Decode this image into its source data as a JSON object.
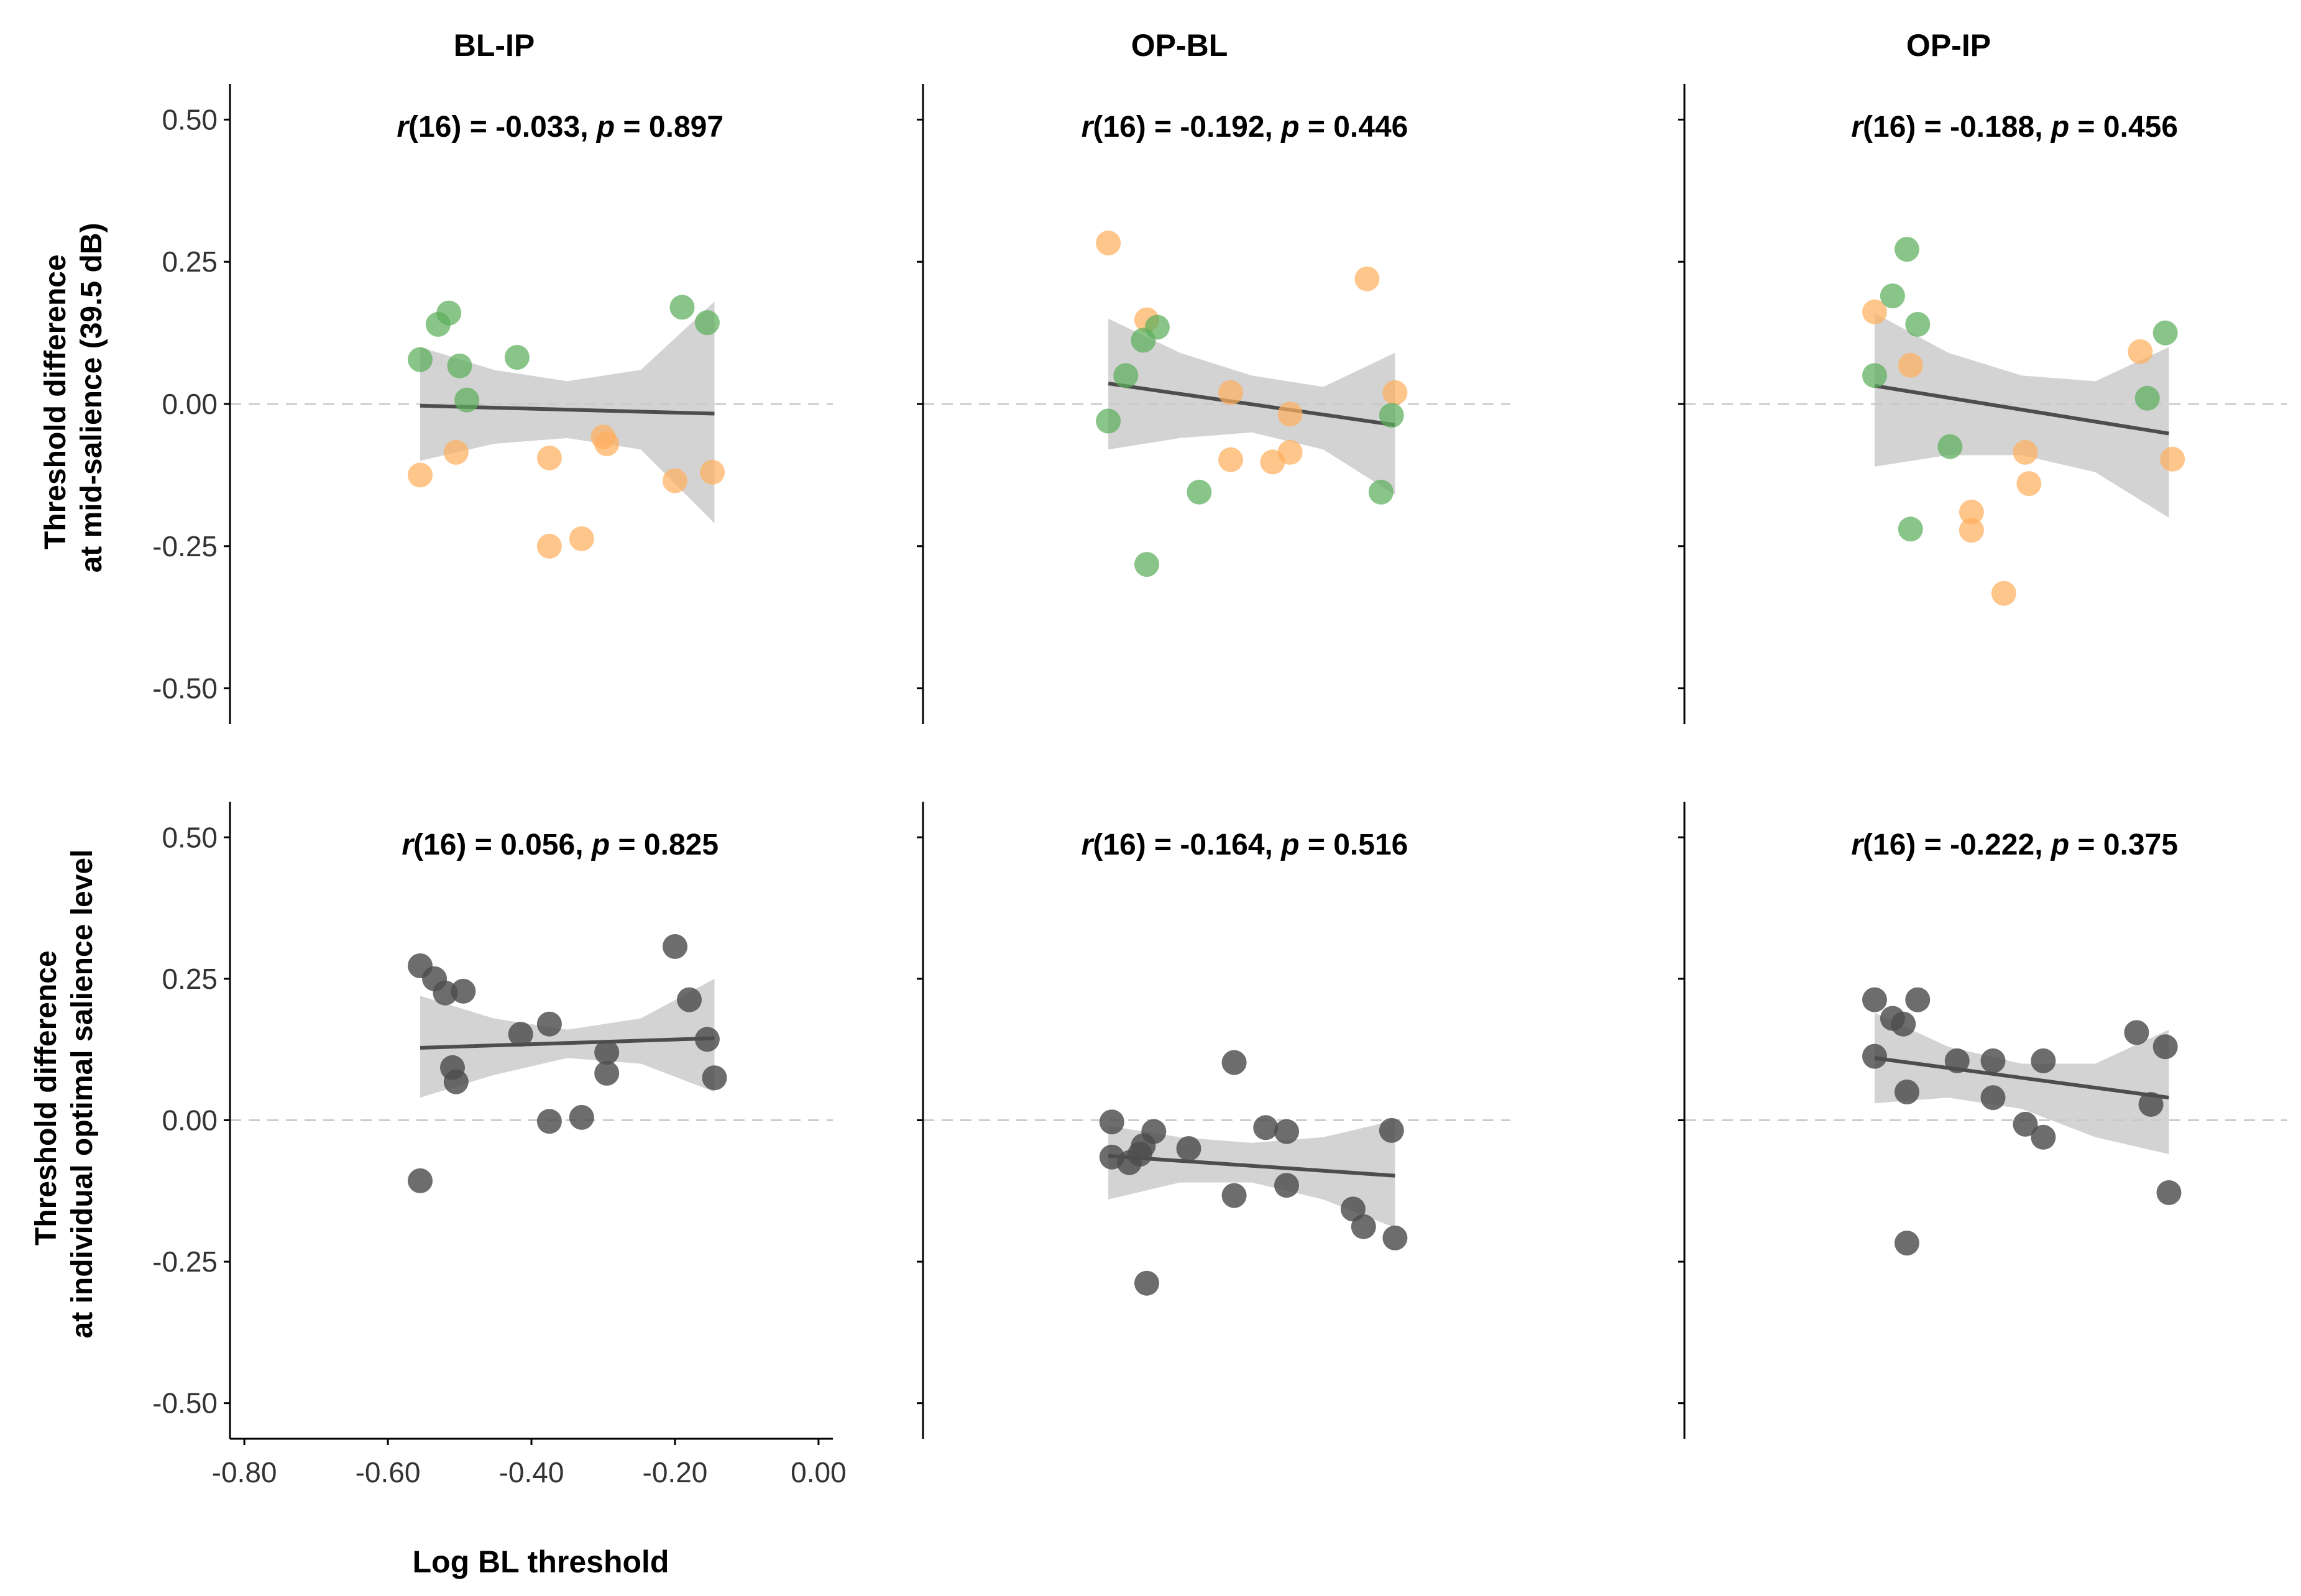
{
  "chart_data": {
    "type": "scatter",
    "xlabel": "Log BL threshold",
    "x_ticks": [
      "-0.80",
      "-0.60",
      "-0.40",
      "-0.20",
      "0.00"
    ],
    "y_ticks": [
      "0.50",
      "0.25",
      "0.00",
      "-0.25",
      "-0.50"
    ],
    "xlim": [
      -0.82,
      0.02
    ],
    "ylim": [
      -0.53,
      0.53
    ],
    "row_ylabels": [
      [
        "Threshold difference",
        "at mid-salience (39.5 dB)"
      ],
      [
        "Threshold difference",
        "at individual optimal salience level"
      ]
    ],
    "column_titles": [
      "BL-IP",
      "OP-BL",
      "OP-IP"
    ],
    "colors": {
      "green": "#5cae5c",
      "orange": "#ffb060",
      "gray": "#4d4d4d",
      "band": "#c8c8c8",
      "line": "#4d4d4d",
      "zero": "#cccccc"
    },
    "panels": [
      {
        "title": "BL-IP",
        "row": 0,
        "col": 0,
        "stat": {
          "r_df": "(16) = -0.033, ",
          "p_val": " = 0.897"
        },
        "fit": {
          "x": [
            -0.555,
            -0.145
          ],
          "y": [
            -0.003,
            -0.017
          ]
        },
        "band": {
          "upper": [
            0.1,
            0.06,
            0.04,
            0.06,
            0.18
          ],
          "lower": [
            -0.1,
            -0.07,
            -0.06,
            -0.08,
            -0.21
          ]
        },
        "points": [
          {
            "x": -0.555,
            "y": 0.078,
            "c": "green"
          },
          {
            "x": -0.53,
            "y": 0.14,
            "c": "green"
          },
          {
            "x": -0.515,
            "y": 0.16,
            "c": "green"
          },
          {
            "x": -0.5,
            "y": 0.067,
            "c": "green"
          },
          {
            "x": -0.49,
            "y": 0.007,
            "c": "green"
          },
          {
            "x": -0.42,
            "y": 0.082,
            "c": "green"
          },
          {
            "x": -0.19,
            "y": 0.17,
            "c": "green"
          },
          {
            "x": -0.155,
            "y": 0.143,
            "c": "green"
          },
          {
            "x": -0.555,
            "y": -0.125,
            "c": "orange"
          },
          {
            "x": -0.505,
            "y": -0.085,
            "c": "orange"
          },
          {
            "x": -0.375,
            "y": -0.095,
            "c": "orange"
          },
          {
            "x": -0.375,
            "y": -0.25,
            "c": "orange"
          },
          {
            "x": -0.33,
            "y": -0.237,
            "c": "orange"
          },
          {
            "x": -0.3,
            "y": -0.058,
            "c": "orange"
          },
          {
            "x": -0.295,
            "y": -0.07,
            "c": "orange"
          },
          {
            "x": -0.2,
            "y": -0.135,
            "c": "orange"
          },
          {
            "x": -0.148,
            "y": -0.12,
            "c": "orange"
          }
        ]
      },
      {
        "title": "OP-BL",
        "row": 0,
        "col": 1,
        "stat": {
          "r_df": "(16) = -0.192, ",
          "p_val": " = 0.446"
        },
        "fit": {
          "x": [
            -0.555,
            -0.145
          ],
          "y": [
            0.036,
            -0.037
          ]
        },
        "band": {
          "upper": [
            0.15,
            0.09,
            0.05,
            0.03,
            0.09
          ],
          "lower": [
            -0.08,
            -0.06,
            -0.05,
            -0.08,
            -0.16
          ]
        },
        "points": [
          {
            "x": -0.555,
            "y": 0.283,
            "c": "orange"
          },
          {
            "x": -0.5,
            "y": 0.148,
            "c": "orange"
          },
          {
            "x": -0.38,
            "y": 0.02,
            "c": "orange"
          },
          {
            "x": -0.38,
            "y": -0.098,
            "c": "orange"
          },
          {
            "x": -0.32,
            "y": -0.102,
            "c": "orange"
          },
          {
            "x": -0.295,
            "y": -0.018,
            "c": "orange"
          },
          {
            "x": -0.295,
            "y": -0.085,
            "c": "orange"
          },
          {
            "x": -0.185,
            "y": 0.22,
            "c": "orange"
          },
          {
            "x": -0.145,
            "y": 0.02,
            "c": "orange"
          },
          {
            "x": -0.555,
            "y": -0.03,
            "c": "green"
          },
          {
            "x": -0.53,
            "y": 0.05,
            "c": "green"
          },
          {
            "x": -0.505,
            "y": 0.112,
            "c": "green"
          },
          {
            "x": -0.485,
            "y": 0.135,
            "c": "green"
          },
          {
            "x": -0.5,
            "y": -0.282,
            "c": "green"
          },
          {
            "x": -0.425,
            "y": -0.155,
            "c": "green"
          },
          {
            "x": -0.165,
            "y": -0.155,
            "c": "green"
          },
          {
            "x": -0.15,
            "y": -0.02,
            "c": "green"
          }
        ]
      },
      {
        "title": "OP-IP",
        "row": 0,
        "col": 2,
        "stat": {
          "r_df": "(16) = -0.188, ",
          "p_val": " = 0.456"
        },
        "fit": {
          "x": [
            -0.555,
            -0.145
          ],
          "y": [
            0.032,
            -0.052
          ]
        },
        "band": {
          "upper": [
            0.16,
            0.09,
            0.05,
            0.04,
            0.1
          ],
          "lower": [
            -0.11,
            -0.09,
            -0.09,
            -0.12,
            -0.2
          ]
        },
        "points": [
          {
            "x": -0.555,
            "y": 0.162,
            "c": "orange"
          },
          {
            "x": -0.505,
            "y": 0.068,
            "c": "orange"
          },
          {
            "x": -0.42,
            "y": -0.19,
            "c": "orange"
          },
          {
            "x": -0.42,
            "y": -0.222,
            "c": "orange"
          },
          {
            "x": -0.375,
            "y": -0.333,
            "c": "orange"
          },
          {
            "x": -0.345,
            "y": -0.085,
            "c": "orange"
          },
          {
            "x": -0.34,
            "y": -0.14,
            "c": "orange"
          },
          {
            "x": -0.185,
            "y": 0.092,
            "c": "orange"
          },
          {
            "x": -0.14,
            "y": -0.097,
            "c": "orange"
          },
          {
            "x": -0.555,
            "y": 0.05,
            "c": "green"
          },
          {
            "x": -0.53,
            "y": 0.19,
            "c": "green"
          },
          {
            "x": -0.51,
            "y": 0.272,
            "c": "green"
          },
          {
            "x": -0.495,
            "y": 0.14,
            "c": "green"
          },
          {
            "x": -0.505,
            "y": -0.22,
            "c": "green"
          },
          {
            "x": -0.45,
            "y": -0.075,
            "c": "green"
          },
          {
            "x": -0.175,
            "y": 0.01,
            "c": "green"
          },
          {
            "x": -0.15,
            "y": 0.125,
            "c": "green"
          }
        ]
      },
      {
        "title": "",
        "row": 1,
        "col": 0,
        "stat": {
          "r_df": "(16) = 0.056, ",
          "p_val": " = 0.825"
        },
        "fit": {
          "x": [
            -0.555,
            -0.145
          ],
          "y": [
            0.128,
            0.145
          ]
        },
        "band": {
          "upper": [
            0.22,
            0.18,
            0.16,
            0.18,
            0.25
          ],
          "lower": [
            0.04,
            0.08,
            0.11,
            0.1,
            0.05
          ]
        },
        "points": [
          {
            "x": -0.555,
            "y": 0.273
          },
          {
            "x": -0.535,
            "y": 0.25
          },
          {
            "x": -0.52,
            "y": 0.225
          },
          {
            "x": -0.495,
            "y": 0.228
          },
          {
            "x": -0.51,
            "y": 0.093
          },
          {
            "x": -0.505,
            "y": 0.068
          },
          {
            "x": -0.555,
            "y": -0.107
          },
          {
            "x": -0.415,
            "y": 0.152
          },
          {
            "x": -0.375,
            "y": 0.17
          },
          {
            "x": -0.375,
            "y": -0.002
          },
          {
            "x": -0.33,
            "y": 0.005
          },
          {
            "x": -0.295,
            "y": 0.12
          },
          {
            "x": -0.295,
            "y": 0.083
          },
          {
            "x": -0.2,
            "y": 0.307
          },
          {
            "x": -0.18,
            "y": 0.213
          },
          {
            "x": -0.155,
            "y": 0.143
          },
          {
            "x": -0.145,
            "y": 0.075
          }
        ]
      },
      {
        "title": "",
        "row": 1,
        "col": 1,
        "stat": {
          "r_df": "(16) = -0.164, ",
          "p_val": " = 0.516"
        },
        "fit": {
          "x": [
            -0.555,
            -0.145
          ],
          "y": [
            -0.063,
            -0.098
          ]
        },
        "band": {
          "upper": [
            -0.01,
            -0.03,
            -0.04,
            -0.03,
            0.0
          ],
          "lower": [
            -0.14,
            -0.11,
            -0.11,
            -0.14,
            -0.19
          ]
        },
        "points": [
          {
            "x": -0.55,
            "y": -0.003
          },
          {
            "x": -0.55,
            "y": -0.065
          },
          {
            "x": -0.525,
            "y": -0.075
          },
          {
            "x": -0.51,
            "y": -0.06
          },
          {
            "x": -0.505,
            "y": -0.045
          },
          {
            "x": -0.49,
            "y": -0.02
          },
          {
            "x": -0.5,
            "y": -0.288
          },
          {
            "x": -0.44,
            "y": -0.05
          },
          {
            "x": -0.375,
            "y": 0.102
          },
          {
            "x": -0.375,
            "y": -0.133
          },
          {
            "x": -0.33,
            "y": -0.013
          },
          {
            "x": -0.3,
            "y": -0.02
          },
          {
            "x": -0.3,
            "y": -0.115
          },
          {
            "x": -0.205,
            "y": -0.157
          },
          {
            "x": -0.19,
            "y": -0.188
          },
          {
            "x": -0.15,
            "y": -0.018
          },
          {
            "x": -0.145,
            "y": -0.208
          }
        ]
      },
      {
        "title": "",
        "row": 1,
        "col": 2,
        "stat": {
          "r_df": "(16) = -0.222, ",
          "p_val": " = 0.375"
        },
        "fit": {
          "x": [
            -0.555,
            -0.145
          ],
          "y": [
            0.11,
            0.04
          ]
        },
        "band": {
          "upper": [
            0.19,
            0.13,
            0.1,
            0.1,
            0.16
          ],
          "lower": [
            0.03,
            0.04,
            0.02,
            -0.03,
            -0.06
          ]
        },
        "points": [
          {
            "x": -0.555,
            "y": 0.213
          },
          {
            "x": -0.555,
            "y": 0.113
          },
          {
            "x": -0.53,
            "y": 0.18
          },
          {
            "x": -0.515,
            "y": 0.17
          },
          {
            "x": -0.495,
            "y": 0.213
          },
          {
            "x": -0.51,
            "y": 0.05
          },
          {
            "x": -0.51,
            "y": -0.217
          },
          {
            "x": -0.44,
            "y": 0.105
          },
          {
            "x": -0.39,
            "y": 0.105
          },
          {
            "x": -0.39,
            "y": 0.04
          },
          {
            "x": -0.345,
            "y": -0.007
          },
          {
            "x": -0.32,
            "y": -0.03
          },
          {
            "x": -0.32,
            "y": 0.105
          },
          {
            "x": -0.19,
            "y": 0.155
          },
          {
            "x": -0.17,
            "y": 0.028
          },
          {
            "x": -0.15,
            "y": 0.13
          },
          {
            "x": -0.145,
            "y": -0.128
          }
        ]
      }
    ]
  }
}
